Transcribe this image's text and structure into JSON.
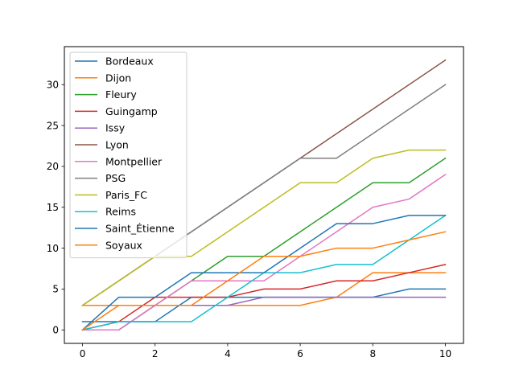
{
  "chart_data": {
    "type": "line",
    "title": "",
    "xlabel": "",
    "ylabel": "",
    "xlim": [
      -0.5,
      10.5
    ],
    "ylim": [
      -1.65,
      34.65
    ],
    "xticks": [
      0,
      2,
      4,
      6,
      8,
      10
    ],
    "yticks": [
      0,
      5,
      10,
      15,
      20,
      25,
      30
    ],
    "grid": false,
    "legend_position": "top-left",
    "x": [
      0,
      1,
      2,
      3,
      4,
      5,
      6,
      7,
      8,
      9,
      10
    ],
    "series": [
      {
        "name": "Bordeaux",
        "color": "#1f77b4",
        "values": [
          1,
          1,
          1,
          4,
          4,
          4,
          4,
          4,
          4,
          5,
          5
        ]
      },
      {
        "name": "Dijon",
        "color": "#ff7f0e",
        "values": [
          3,
          3,
          3,
          3,
          3,
          3,
          3,
          4,
          7,
          7,
          7
        ]
      },
      {
        "name": "Fleury",
        "color": "#2ca02c",
        "values": [
          0,
          0,
          3,
          6,
          9,
          9,
          12,
          15,
          18,
          18,
          21
        ]
      },
      {
        "name": "Guingamp",
        "color": "#d62728",
        "values": [
          0,
          1,
          4,
          4,
          4,
          5,
          5,
          6,
          6,
          7,
          8
        ]
      },
      {
        "name": "Issy",
        "color": "#9467bd",
        "values": [
          0,
          0,
          3,
          3,
          3,
          4,
          4,
          4,
          4,
          4,
          4
        ]
      },
      {
        "name": "Lyon",
        "color": "#8c564b",
        "values": [
          3,
          6,
          9,
          12,
          15,
          18,
          21,
          24,
          27,
          30,
          33
        ]
      },
      {
        "name": "Montpellier",
        "color": "#e377c2",
        "values": [
          0,
          0,
          3,
          6,
          6,
          6,
          9,
          12,
          15,
          16,
          19
        ]
      },
      {
        "name": "PSG",
        "color": "#7f7f7f",
        "values": [
          3,
          6,
          9,
          12,
          15,
          18,
          21,
          21,
          24,
          27,
          30
        ]
      },
      {
        "name": "Paris_FC",
        "color": "#bcbd22",
        "values": [
          3,
          6,
          9,
          9,
          12,
          15,
          18,
          18,
          21,
          22,
          22
        ]
      },
      {
        "name": "Reims",
        "color": "#17becf",
        "values": [
          0,
          1,
          1,
          1,
          4,
          7,
          7,
          8,
          8,
          11,
          14
        ]
      },
      {
        "name": "Saint_Étienne",
        "color": "#1f77b4",
        "values": [
          0,
          4,
          4,
          7,
          7,
          7,
          10,
          13,
          13,
          14,
          14
        ]
      },
      {
        "name": "Soyaux",
        "color": "#ff7f0e",
        "values": [
          0,
          3,
          3,
          3,
          6,
          9,
          9,
          10,
          10,
          11,
          12
        ]
      }
    ]
  }
}
